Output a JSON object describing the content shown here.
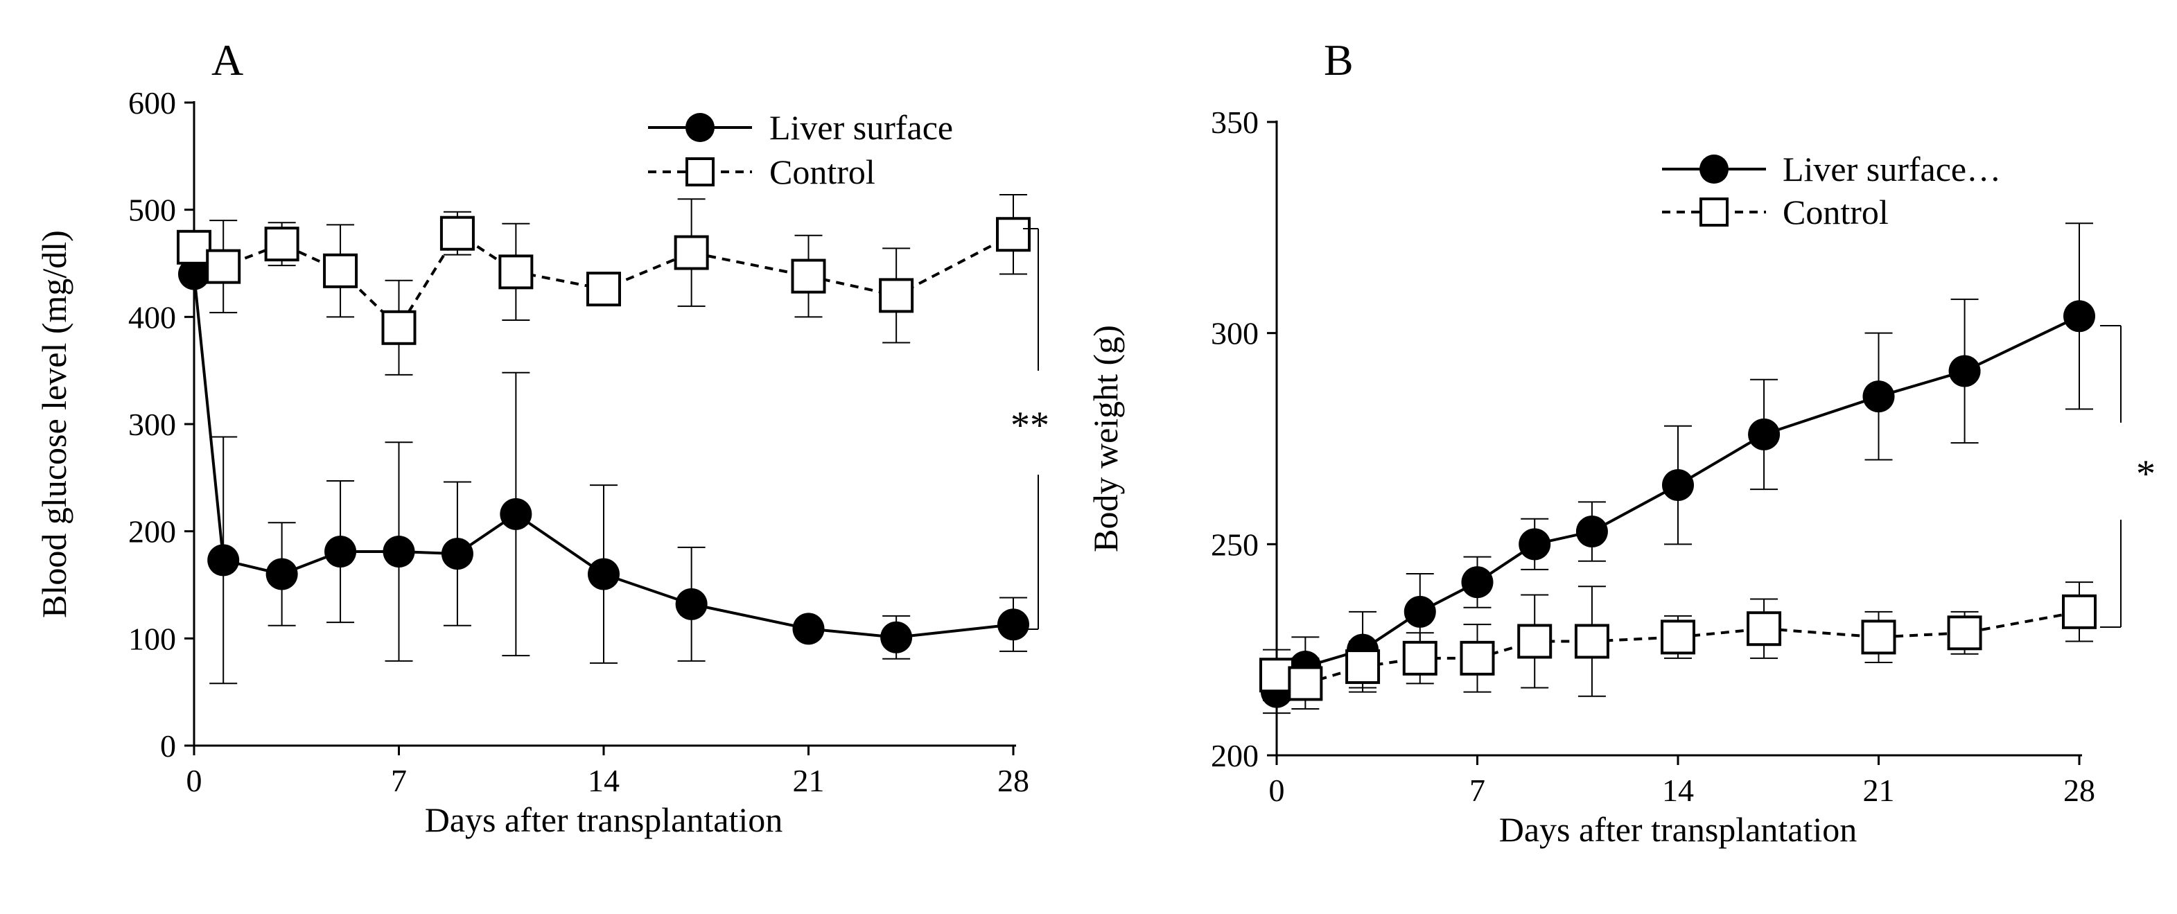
{
  "figure": {
    "panels": [
      "A",
      "B"
    ]
  },
  "chart_data": [
    {
      "type": "line",
      "panel_label": "A",
      "xlabel": "Days after transplantation",
      "ylabel": "Blood glucose level (mg/dl)",
      "xlim": [
        0,
        28
      ],
      "ylim": [
        0,
        600
      ],
      "xticks": [
        0,
        7,
        14,
        21,
        28
      ],
      "yticks": [
        0,
        100,
        200,
        300,
        400,
        500,
        600
      ],
      "grid": false,
      "legend_position": "top-right",
      "significance": "**",
      "series": [
        {
          "name": "Liver surface",
          "marker": "filled-circle",
          "line": "solid",
          "x": [
            0,
            1,
            3,
            5,
            7,
            9,
            11,
            14,
            17,
            21,
            24,
            28
          ],
          "y": [
            440,
            173,
            160,
            181,
            181,
            179,
            216,
            160,
            132,
            109,
            101,
            113
          ],
          "err": [
            0,
            115,
            48,
            66,
            102,
            67,
            132,
            83,
            53,
            0,
            20,
            25
          ]
        },
        {
          "name": "Control",
          "marker": "open-square",
          "line": "dashed",
          "x": [
            0,
            1,
            3,
            5,
            7,
            9,
            11,
            14,
            17,
            21,
            24,
            28
          ],
          "y": [
            465,
            447,
            468,
            443,
            390,
            478,
            442,
            426,
            460,
            438,
            420,
            477
          ],
          "err": [
            0,
            43,
            20,
            43,
            44,
            20,
            45,
            13,
            50,
            38,
            44,
            37
          ]
        }
      ]
    },
    {
      "type": "line",
      "panel_label": "B",
      "xlabel": "Days after transplantation",
      "ylabel": "Body weight (g)",
      "xlim": [
        0,
        28
      ],
      "ylim": [
        200,
        350
      ],
      "xticks": [
        0,
        7,
        14,
        21,
        28
      ],
      "yticks": [
        200,
        250,
        300,
        350
      ],
      "grid": false,
      "legend_position": "top-right",
      "significance": "*",
      "series": [
        {
          "name": "Liver surface…",
          "marker": "filled-circle",
          "line": "solid",
          "x": [
            0,
            1,
            3,
            5,
            7,
            9,
            11,
            14,
            17,
            21,
            24,
            28
          ],
          "y": [
            215,
            221,
            225,
            234,
            241,
            250,
            253,
            264,
            276,
            285,
            291,
            304
          ],
          "err": [
            5,
            7,
            9,
            9,
            6,
            6,
            7,
            14,
            13,
            15,
            17,
            22
          ]
        },
        {
          "name": "Control",
          "marker": "open-square",
          "line": "dashed",
          "x": [
            0,
            1,
            3,
            5,
            7,
            9,
            11,
            14,
            17,
            21,
            24,
            28
          ],
          "y": [
            219,
            217,
            221,
            223,
            223,
            227,
            227,
            228,
            230,
            228,
            229,
            234
          ],
          "err": [
            6,
            6,
            6,
            6,
            8,
            11,
            13,
            5,
            7,
            6,
            5,
            7
          ]
        }
      ]
    }
  ]
}
